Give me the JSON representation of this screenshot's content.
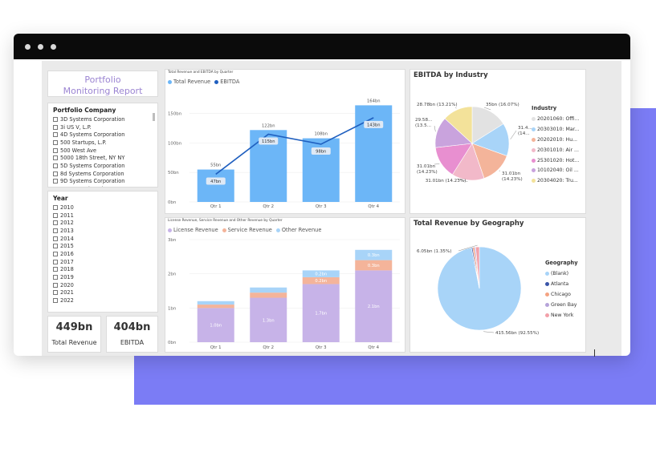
{
  "report_title": "Portfolio Monitoring Report",
  "company_slicer": {
    "header": "Portfolio Company",
    "items": [
      "3D Systems Corporation",
      "3i US V, L.P.",
      "4D Systems Corporation",
      "500 Startups, L.P.",
      "500 West Ave",
      "5000 18th Street, NY NY",
      "5D Systems Corporation",
      "8d Systems Corporation",
      "9D Systems Corporation",
      "A & D Food Products"
    ]
  },
  "year_slicer": {
    "header": "Year",
    "items": [
      "2010",
      "2011",
      "2012",
      "2013",
      "2014",
      "2015",
      "2016",
      "2017",
      "2018",
      "2019",
      "2020",
      "2021",
      "2022"
    ]
  },
  "kpis": [
    {
      "value": "449bn",
      "label": "Total Revenue"
    },
    {
      "value": "404bn",
      "label": "EBITDA"
    }
  ],
  "colors": {
    "total_revenue": "#6cb6f7",
    "ebitda": "#1f5fbf",
    "license_revenue": "#c7b3e8",
    "service_revenue": "#f4b49a",
    "other_revenue": "#a8d4f8",
    "background_block": "#7b7cf5"
  },
  "chart_data": [
    {
      "type": "bar",
      "title": "Total Revenue and EBITDA by Quarter",
      "categories": [
        "Qtr 1",
        "Qtr 2",
        "Qtr 3",
        "Qtr 4"
      ],
      "series": [
        {
          "name": "Total Revenue",
          "values": [
            55,
            122,
            108,
            164
          ],
          "labels": [
            "55bn",
            "122bn",
            "108bn",
            "164bn"
          ]
        },
        {
          "name": "EBITDA",
          "type": "line",
          "values": [
            47,
            115,
            98,
            143
          ],
          "labels": [
            "47bn",
            "115bn",
            "98bn",
            "143bn"
          ]
        }
      ],
      "yticks": [
        "0bn",
        "50bn",
        "100bn",
        "150bn"
      ],
      "ylim": [
        0,
        170
      ],
      "legend_position": "top-left"
    },
    {
      "type": "pie",
      "title": "EBITDA by Industry",
      "legend_title": "Industry",
      "slices": [
        {
          "name": "20201060: Offi...",
          "value": 35,
          "label": "35bn (16.07%)",
          "color": "#e2e2e2"
        },
        {
          "name": "20303010: Mar...",
          "value": 31.4,
          "label": "31.4...\n(14...",
          "color": "#a8d4f8"
        },
        {
          "name": "20202010: Hu...",
          "value": 31.01,
          "label": "31.01bn\n(14.23%)",
          "color": "#f4b49a"
        },
        {
          "name": "20301010: Air ...",
          "value": 31.01,
          "label": "31.01bn (14.23%)",
          "color": "#f2b9c9"
        },
        {
          "name": "25301020: Hot...",
          "value": 31.01,
          "label": "31.01bn\n(14.23%)",
          "color": "#e88fd0"
        },
        {
          "name": "10102040: Oil ...",
          "value": 29.58,
          "label": "29.58...\n(13.5...",
          "color": "#c9a3dd"
        },
        {
          "name": "20304020: Tru...",
          "value": 28.78,
          "label": "28.78bn (13.21%)",
          "color": "#f3e29a"
        }
      ],
      "legend_position": "right"
    },
    {
      "type": "bar",
      "stacked": true,
      "title": "License Revenue, Service Revenue and Other Revenue by Quarter",
      "categories": [
        "Qtr 1",
        "Qtr 2",
        "Qtr 3",
        "Qtr 4"
      ],
      "series": [
        {
          "name": "License Revenue",
          "values": [
            1.0,
            1.3,
            1.7,
            2.1
          ],
          "labels": [
            "1.0bn",
            "1.3bn",
            "1.7bn",
            "2.1bn"
          ]
        },
        {
          "name": "Service Revenue",
          "values": [
            0.1,
            0.15,
            0.2,
            0.3
          ],
          "labels": [
            "",
            "",
            "0.2bn",
            "0.3bn"
          ]
        },
        {
          "name": "Other Revenue",
          "values": [
            0.1,
            0.15,
            0.2,
            0.3
          ],
          "labels": [
            "",
            "",
            "0.2bn",
            "0.3bn"
          ]
        }
      ],
      "yticks": [
        "0bn",
        "1bn",
        "2bn",
        "3bn"
      ],
      "ylim": [
        0,
        3
      ],
      "legend_position": "top-left"
    },
    {
      "type": "pie",
      "title": "Total Revenue by Geography",
      "legend_title": "Geography",
      "slices": [
        {
          "name": "(Blank)",
          "value": 415.56,
          "label": "415.56bn (92.55%)",
          "color": "#a8d4f8"
        },
        {
          "name": "Atlanta",
          "value": 2.0,
          "label": "",
          "color": "#3a55a8"
        },
        {
          "name": "Chicago",
          "value": 3.0,
          "label": "",
          "color": "#f4a382"
        },
        {
          "name": "Green Bay",
          "value": 2.0,
          "label": "",
          "color": "#b6a3d9"
        },
        {
          "name": "New York",
          "value": 6.05,
          "label": "6.05bn (1.35%)",
          "color": "#f2a0a9"
        }
      ],
      "legend_position": "right"
    }
  ]
}
